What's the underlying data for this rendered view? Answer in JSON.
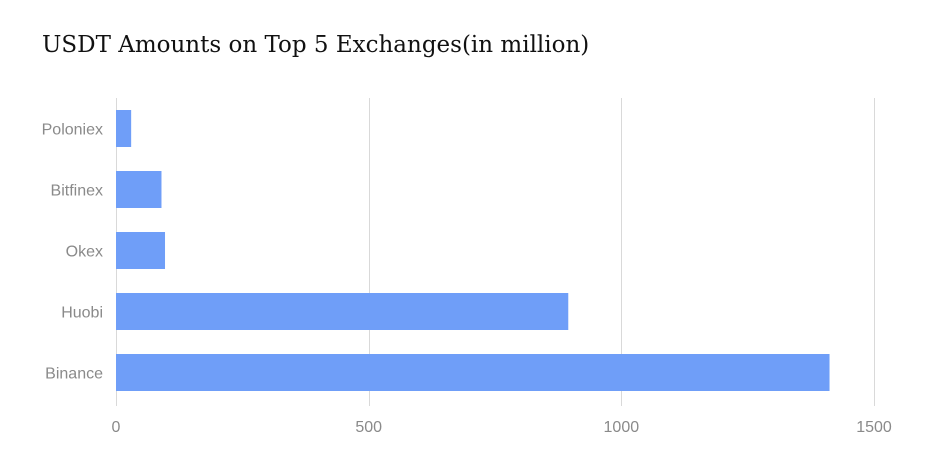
{
  "chart_data": {
    "type": "bar",
    "orientation": "horizontal",
    "title": "USDT Amounts on Top 5 Exchanges(in million)",
    "categories": [
      "Poloniex",
      "Bitfinex",
      "Okex",
      "Huobi",
      "Binance"
    ],
    "values": [
      30,
      90,
      97,
      895,
      1412
    ],
    "xlim": [
      0,
      1500
    ],
    "xticks": [
      0,
      500,
      1000,
      1500
    ],
    "grid": true,
    "bar_color": "#6f9ef8",
    "grid_color": "#d9d9d9",
    "label_color": "#8a8a8a"
  }
}
